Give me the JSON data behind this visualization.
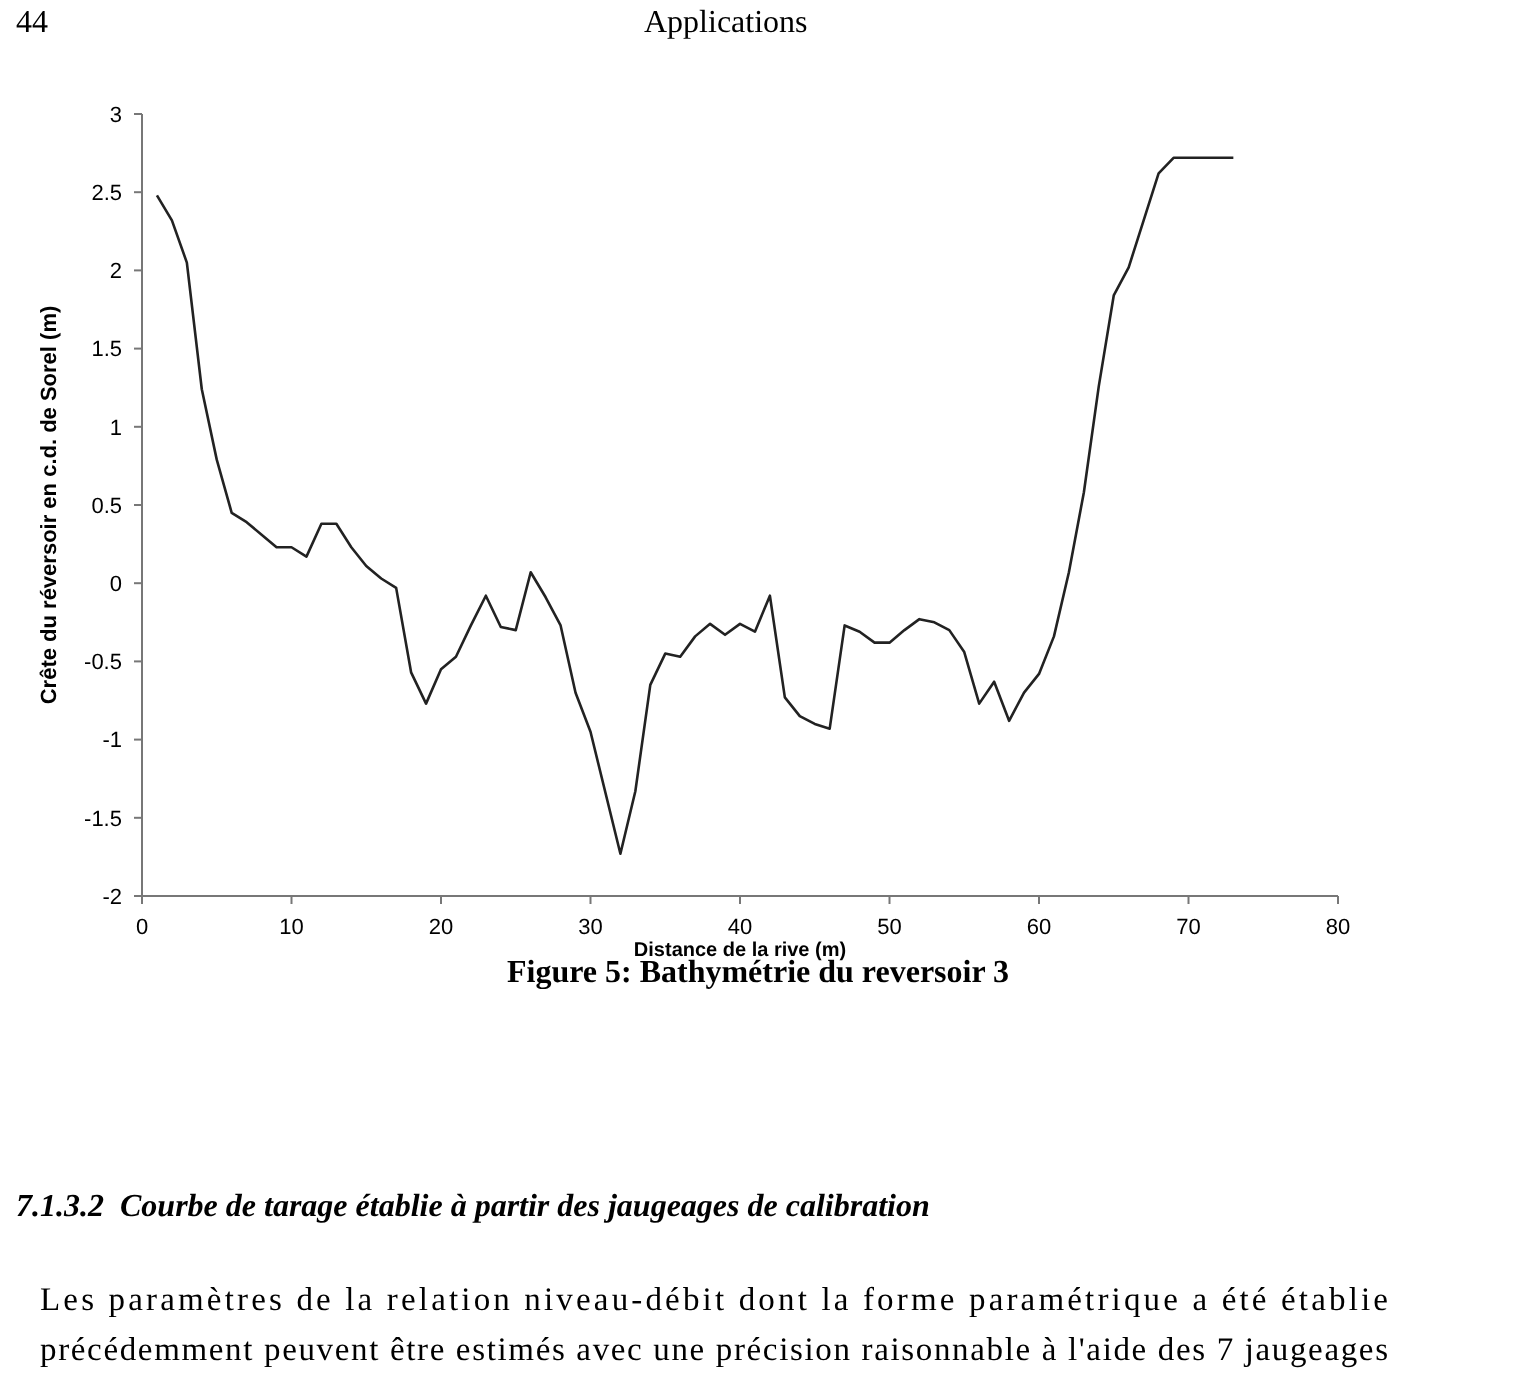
{
  "chart_data": {
    "type": "line",
    "title": "Figure 5: Bathymétrie du reversoir 3",
    "xlabel": "Distance de la rive (m)",
    "ylabel": "Crête du réversoir en c.d. de Sorel (m)",
    "x": [
      1,
      2,
      3,
      4,
      5,
      6,
      7,
      8,
      9,
      10,
      11,
      12,
      13,
      14,
      15,
      16,
      17,
      18,
      19,
      20,
      21,
      22,
      23,
      24,
      25,
      26,
      27,
      28,
      29,
      30,
      32,
      33,
      34,
      35,
      36,
      37,
      38,
      39,
      40,
      41,
      42,
      43,
      44,
      45,
      46,
      47,
      48,
      49,
      50,
      51,
      52,
      53,
      54,
      55,
      56,
      57,
      58,
      59,
      60,
      61,
      62,
      63,
      64,
      65,
      66,
      67,
      68,
      69,
      73
    ],
    "series": [
      {
        "color": "#222222",
        "values": [
          2.48,
          2.32,
          2.05,
          1.24,
          0.79,
          0.45,
          0.39,
          0.31,
          0.23,
          0.23,
          0.17,
          0.38,
          0.38,
          0.23,
          0.11,
          0.03,
          -0.03,
          -0.57,
          -0.77,
          -0.55,
          -0.47,
          -0.27,
          -0.08,
          -0.28,
          -0.3,
          0.07,
          -0.09,
          -0.27,
          -0.7,
          -0.95,
          -1.73,
          -1.33,
          -0.65,
          -0.45,
          -0.47,
          -0.34,
          -0.26,
          -0.33,
          -0.26,
          -0.31,
          -0.08,
          -0.73,
          -0.85,
          -0.9,
          -0.93,
          -0.27,
          -0.31,
          -0.38,
          -0.38,
          -0.3,
          -0.23,
          -0.25,
          -0.3,
          -0.44,
          -0.77,
          -0.63,
          -0.88,
          -0.7,
          -0.58,
          -0.34,
          0.07,
          0.58,
          1.26,
          1.84,
          2.02,
          2.32,
          2.62,
          2.72,
          2.72
        ]
      }
    ],
    "xlim": [
      0,
      80
    ],
    "xticks": [
      0,
      10,
      20,
      30,
      40,
      50,
      60,
      70,
      80
    ],
    "ylim": [
      -2,
      3
    ],
    "yticks": [
      -2,
      -1.5,
      -1,
      -0.5,
      0,
      0.5,
      1,
      1.5,
      2,
      2.5,
      3
    ],
    "grid": false,
    "marker": "none",
    "line_style": "solid",
    "annotations": [
      "44",
      "Applications",
      "7.1.3.2  Courbe de tarage établie à partir des jaugeages de calibration",
      "Les paramètres de la relation niveau-débit dont la forme paramétrique a été établie",
      "précédemment peuvent être estimés avec une précision raisonnable à l'aide des 7 jaugeages"
    ]
  }
}
